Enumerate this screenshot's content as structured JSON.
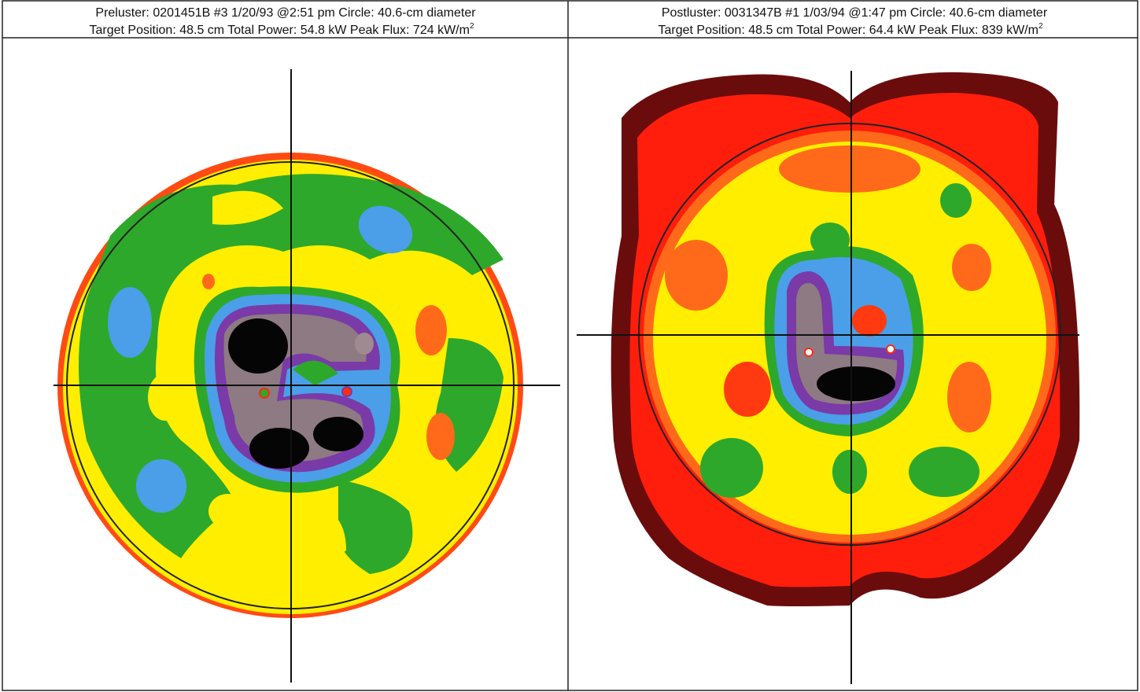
{
  "panels": [
    {
      "header": {
        "line1": "Preluster:  0201451B #3  1/20/93 @2:51 pm  Circle:  40.6-cm diameter",
        "line2": "Target Position:  48.5 cm  Total Power:  54.8 kW  Peak Flux:  724 kW/m",
        "line2_sup": "2"
      }
    },
    {
      "header": {
        "line1": "Postluster:  0031347B #1  1/03/94 @1:47 pm  Circle:  40.6-cm diameter",
        "line2": "Target Position:  48.5 cm  Total Power:  64.4 kW  Peak Flux:  839 kW/m",
        "line2_sup": "2"
      }
    }
  ]
}
